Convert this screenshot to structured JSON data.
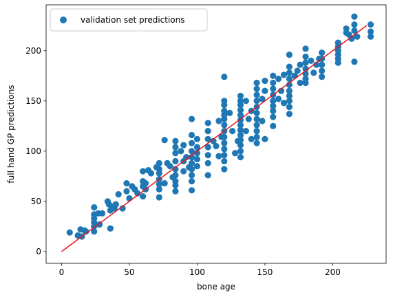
{
  "chart_data": {
    "type": "scatter",
    "title": "",
    "xlabel": "bone age",
    "ylabel": "full hand GP predictions",
    "xlim": [
      -11.4,
      239.4
    ],
    "ylim": [
      -11.7,
      245.7
    ],
    "xticks": [
      0,
      50,
      100,
      150,
      200
    ],
    "yticks": [
      0,
      50,
      100,
      150,
      200
    ],
    "grid": false,
    "legend": {
      "location": "top-left",
      "entries": [
        "validation set predictions"
      ]
    },
    "series": [
      {
        "name": "validation set predictions",
        "kind": "scatter",
        "color": "#1f77b4",
        "points": [
          [
            6,
            19
          ],
          [
            12,
            16
          ],
          [
            14,
            22
          ],
          [
            15,
            15
          ],
          [
            17,
            21
          ],
          [
            18,
            20
          ],
          [
            24,
            44
          ],
          [
            24,
            37
          ],
          [
            24,
            33
          ],
          [
            24,
            29
          ],
          [
            24,
            25
          ],
          [
            24,
            20
          ],
          [
            27,
            38
          ],
          [
            28,
            27
          ],
          [
            30,
            38
          ],
          [
            34,
            50
          ],
          [
            35,
            47
          ],
          [
            36,
            23
          ],
          [
            36,
            41
          ],
          [
            37,
            45
          ],
          [
            39,
            43
          ],
          [
            40,
            47
          ],
          [
            42,
            57
          ],
          [
            45,
            43
          ],
          [
            48,
            60
          ],
          [
            48,
            68
          ],
          [
            50,
            53
          ],
          [
            52,
            65
          ],
          [
            54,
            62
          ],
          [
            56,
            58
          ],
          [
            60,
            80
          ],
          [
            60,
            70
          ],
          [
            60,
            65
          ],
          [
            60,
            55
          ],
          [
            62,
            62
          ],
          [
            62,
            68
          ],
          [
            64,
            81
          ],
          [
            66,
            78
          ],
          [
            70,
            84
          ],
          [
            72,
            82
          ],
          [
            72,
            54
          ],
          [
            72,
            62
          ],
          [
            72,
            67
          ],
          [
            72,
            72
          ],
          [
            72,
            78
          ],
          [
            72,
            88
          ],
          [
            76,
            111
          ],
          [
            76,
            68
          ],
          [
            78,
            88
          ],
          [
            80,
            85
          ],
          [
            82,
            74
          ],
          [
            84,
            110
          ],
          [
            84,
            104
          ],
          [
            84,
            98
          ],
          [
            84,
            90
          ],
          [
            84,
            82
          ],
          [
            84,
            76
          ],
          [
            84,
            70
          ],
          [
            84,
            66
          ],
          [
            84,
            60
          ],
          [
            88,
            100
          ],
          [
            90,
            106
          ],
          [
            90,
            90
          ],
          [
            90,
            80
          ],
          [
            92,
            94
          ],
          [
            94,
            84
          ],
          [
            96,
            132
          ],
          [
            96,
            116
          ],
          [
            96,
            108
          ],
          [
            96,
            100
          ],
          [
            96,
            94
          ],
          [
            96,
            88
          ],
          [
            96,
            82
          ],
          [
            96,
            76
          ],
          [
            96,
            70
          ],
          [
            96,
            61
          ],
          [
            100,
            112
          ],
          [
            100,
            104
          ],
          [
            100,
            98
          ],
          [
            100,
            92
          ],
          [
            100,
            85
          ],
          [
            108,
            128
          ],
          [
            108,
            120
          ],
          [
            108,
            112
          ],
          [
            108,
            104
          ],
          [
            108,
            96
          ],
          [
            108,
            88
          ],
          [
            108,
            76
          ],
          [
            112,
            110
          ],
          [
            114,
            105
          ],
          [
            116,
            95
          ],
          [
            116,
            130
          ],
          [
            118,
            114
          ],
          [
            120,
            174
          ],
          [
            120,
            150
          ],
          [
            120,
            146
          ],
          [
            120,
            140
          ],
          [
            120,
            136
          ],
          [
            120,
            132
          ],
          [
            120,
            126
          ],
          [
            120,
            120
          ],
          [
            120,
            114
          ],
          [
            120,
            108
          ],
          [
            120,
            102
          ],
          [
            120,
            96
          ],
          [
            120,
            90
          ],
          [
            120,
            82
          ],
          [
            124,
            138
          ],
          [
            126,
            120
          ],
          [
            128,
            98
          ],
          [
            130,
            110
          ],
          [
            132,
            155
          ],
          [
            132,
            150
          ],
          [
            132,
            146
          ],
          [
            132,
            141
          ],
          [
            132,
            136
          ],
          [
            132,
            131
          ],
          [
            132,
            126
          ],
          [
            132,
            121
          ],
          [
            132,
            116
          ],
          [
            132,
            111
          ],
          [
            132,
            106
          ],
          [
            132,
            100
          ],
          [
            132,
            94
          ],
          [
            136,
            150
          ],
          [
            136,
            120
          ],
          [
            138,
            132
          ],
          [
            140,
            140
          ],
          [
            140,
            112
          ],
          [
            144,
            168
          ],
          [
            144,
            162
          ],
          [
            144,
            156
          ],
          [
            144,
            150
          ],
          [
            144,
            144
          ],
          [
            144,
            138
          ],
          [
            144,
            132
          ],
          [
            144,
            126
          ],
          [
            144,
            120
          ],
          [
            144,
            114
          ],
          [
            144,
            108
          ],
          [
            148,
            152
          ],
          [
            148,
            130
          ],
          [
            150,
            170
          ],
          [
            150,
            112
          ],
          [
            150,
            160
          ],
          [
            156,
            175
          ],
          [
            156,
            168
          ],
          [
            156,
            162
          ],
          [
            156,
            156
          ],
          [
            156,
            150
          ],
          [
            156,
            145
          ],
          [
            156,
            140
          ],
          [
            156,
            134
          ],
          [
            156,
            125
          ],
          [
            160,
            172
          ],
          [
            160,
            152
          ],
          [
            162,
            160
          ],
          [
            164,
            176
          ],
          [
            164,
            148
          ],
          [
            168,
            196
          ],
          [
            168,
            184
          ],
          [
            168,
            178
          ],
          [
            168,
            172
          ],
          [
            168,
            166
          ],
          [
            168,
            160
          ],
          [
            168,
            155
          ],
          [
            168,
            150
          ],
          [
            168,
            144
          ],
          [
            168,
            137
          ],
          [
            172,
            175
          ],
          [
            174,
            180
          ],
          [
            176,
            186
          ],
          [
            176,
            168
          ],
          [
            180,
            202
          ],
          [
            180,
            194
          ],
          [
            180,
            188
          ],
          [
            180,
            182
          ],
          [
            180,
            177
          ],
          [
            180,
            172
          ],
          [
            180,
            168
          ],
          [
            184,
            190
          ],
          [
            186,
            178
          ],
          [
            188,
            186
          ],
          [
            190,
            192
          ],
          [
            192,
            198
          ],
          [
            192,
            192
          ],
          [
            192,
            186
          ],
          [
            192,
            180
          ],
          [
            192,
            174
          ],
          [
            204,
            208
          ],
          [
            204,
            204
          ],
          [
            204,
            200
          ],
          [
            204,
            196
          ],
          [
            204,
            192
          ],
          [
            204,
            188
          ],
          [
            210,
            222
          ],
          [
            210,
            218
          ],
          [
            212,
            216
          ],
          [
            214,
            212
          ],
          [
            216,
            234
          ],
          [
            216,
            226
          ],
          [
            216,
            220
          ],
          [
            216,
            189
          ],
          [
            218,
            214
          ],
          [
            228,
            226
          ],
          [
            228,
            219
          ],
          [
            228,
            214
          ]
        ]
      },
      {
        "name": "",
        "kind": "line",
        "color": "#e6161c",
        "points": [
          [
            0,
            0
          ],
          [
            225,
            225
          ]
        ]
      }
    ]
  }
}
